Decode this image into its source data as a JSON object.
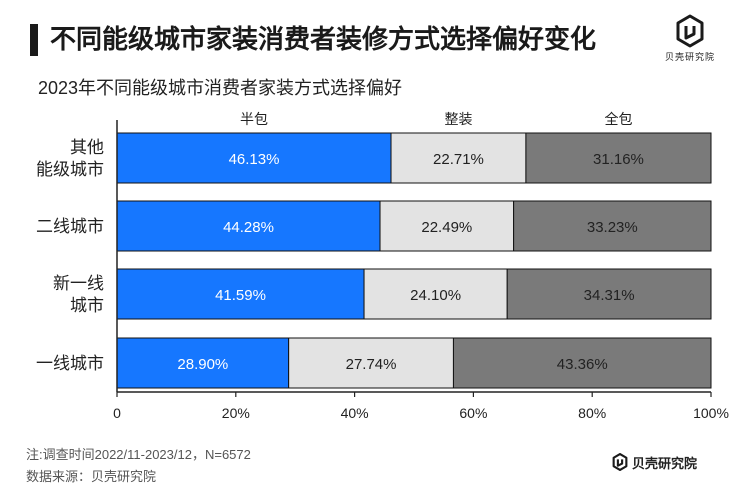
{
  "header": {
    "title": "不同能级城市家装消费者装修方式选择偏好变化",
    "subtitle": "2023年不同能级城市消费者家装方式选择偏好",
    "logo_text": "贝壳研究院"
  },
  "chart_data": {
    "type": "bar",
    "orientation": "horizontal",
    "stacked": true,
    "percent": true,
    "title": "2023年不同能级城市消费者家装方式选择偏好",
    "categories": [
      "其他能级城市",
      "二线城市",
      "新一线城市",
      "一线城市"
    ],
    "category_label_lines": [
      [
        "其他",
        "能级城市"
      ],
      [
        "二线城市"
      ],
      [
        "新一线",
        "城市"
      ],
      [
        "一线城市"
      ]
    ],
    "series": [
      {
        "name": "半包",
        "values": [
          46.13,
          44.28,
          41.59,
          28.9
        ],
        "labels": [
          "46.13%",
          "44.28%",
          "41.59%",
          "28.90%"
        ],
        "color": "#1677ff",
        "label_color": "#ffffff"
      },
      {
        "name": "整装",
        "values": [
          22.71,
          22.49,
          24.1,
          27.74
        ],
        "labels": [
          "22.71%",
          "22.49%",
          "24.10%",
          "27.74%"
        ],
        "color": "#e3e3e3",
        "label_color": "#222222"
      },
      {
        "name": "全包",
        "values": [
          31.16,
          33.23,
          34.31,
          43.36
        ],
        "labels": [
          "31.16%",
          "33.23%",
          "34.31%",
          "43.36%"
        ],
        "color": "#7a7a7a",
        "label_color": "#222222"
      }
    ],
    "xlim": [
      0,
      100
    ],
    "x_ticks": [
      0,
      20,
      40,
      60,
      80,
      100
    ],
    "x_tick_labels": [
      "0",
      "20%",
      "40%",
      "60%",
      "80%",
      "100%"
    ],
    "legend_position": "top, above each segment",
    "grid": false
  },
  "footnotes": {
    "note": "注:调查时间2022/11-2023/12，N=6572",
    "source": "数据来源：贝壳研究院",
    "brand": "贝壳研究院"
  }
}
